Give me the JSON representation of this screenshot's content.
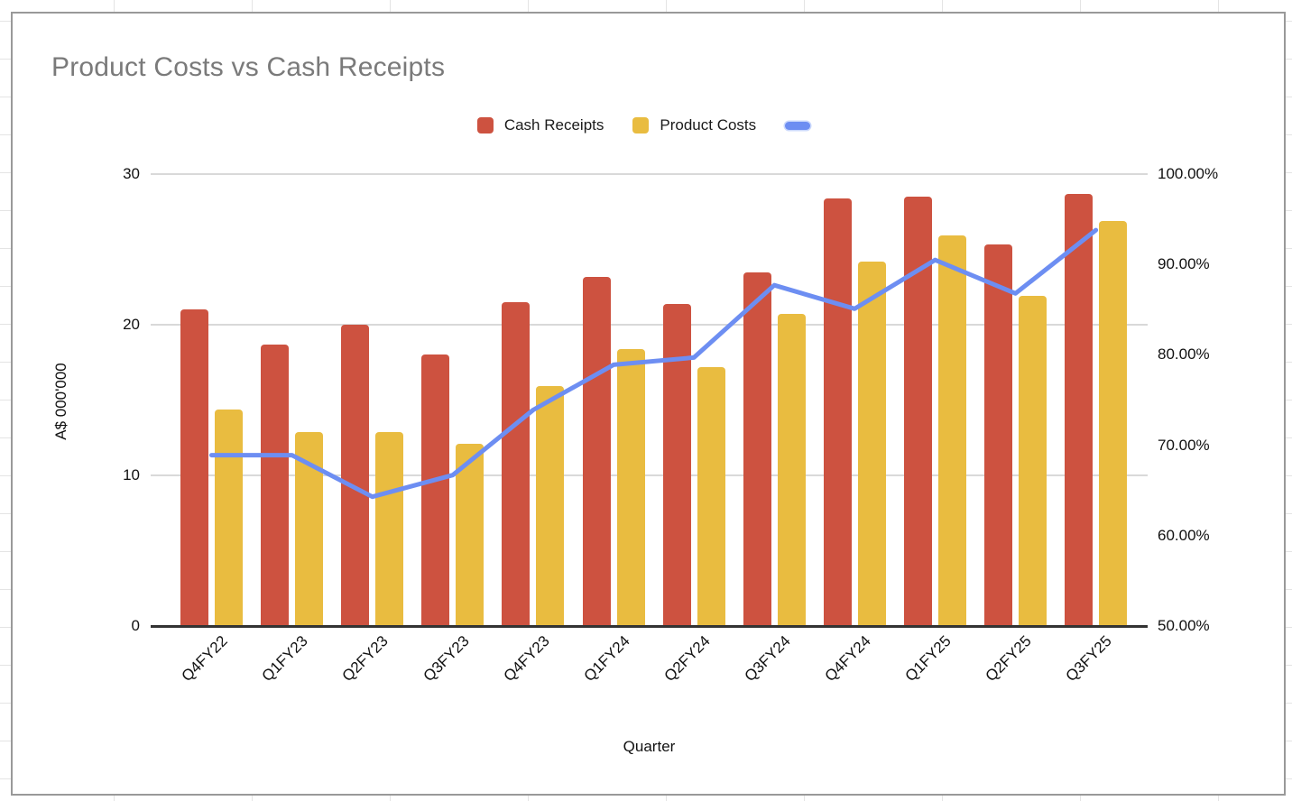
{
  "chart_data": {
    "type": "combo-bar-line",
    "title": "Product Costs vs Cash Receipts",
    "x_axis_title": "Quarter",
    "categories": [
      "Q4FY22",
      "Q1FY23",
      "Q2FY23",
      "Q3FY23",
      "Q4FY23",
      "Q1FY24",
      "Q2FY24",
      "Q3FY24",
      "Q4FY24",
      "Q1FY25",
      "Q2FY25",
      "Q3FY25"
    ],
    "series": [
      {
        "name": "Cash Receipts",
        "type": "bar",
        "axis": "left",
        "color": "#cd5240",
        "values": [
          21.0,
          18.7,
          20.0,
          18.0,
          21.5,
          23.2,
          21.4,
          23.5,
          28.4,
          28.5,
          25.3,
          28.7
        ]
      },
      {
        "name": "Product Costs",
        "type": "bar",
        "axis": "left",
        "color": "#e9bc40",
        "values": [
          14.4,
          12.9,
          12.9,
          12.1,
          15.9,
          18.4,
          17.2,
          20.7,
          24.2,
          25.9,
          21.9,
          26.9
        ]
      },
      {
        "name": "",
        "type": "line",
        "axis": "right",
        "color": "#6d8ef2",
        "values": [
          68.9,
          68.9,
          64.3,
          66.7,
          73.9,
          78.9,
          79.7,
          87.7,
          85.1,
          90.5,
          86.8,
          93.8
        ]
      }
    ],
    "left_axis": {
      "title": "A$ 000'000",
      "range": [
        0,
        30
      ],
      "ticks": [
        "30",
        "20",
        "10",
        "0"
      ]
    },
    "right_axis": {
      "range": [
        50,
        100
      ],
      "ticks": [
        "100.00%",
        "90.00%",
        "80.00%",
        "70.00%",
        "60.00%",
        "50.00%"
      ]
    },
    "grid": true,
    "legend_position": "top"
  },
  "colors": {
    "grid_line": "#d9d9d9",
    "axis_line": "#333333",
    "title_text": "#7a7a7a",
    "tick_text": "#111111",
    "card_border": "#999999",
    "sheet_grid": "#e4e4e4"
  }
}
